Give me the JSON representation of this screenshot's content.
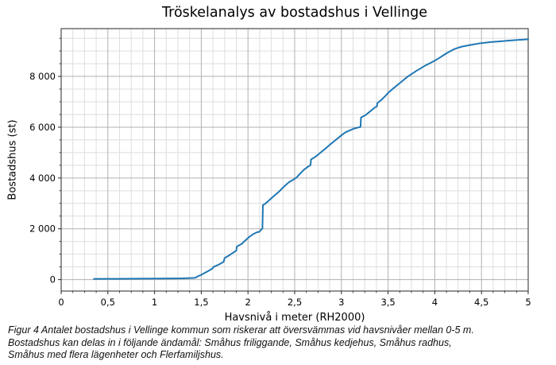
{
  "chart_data": {
    "type": "line",
    "title": "Tröskelanalys av bostadshus i Vellinge",
    "xlabel": "Havsnivå i meter (RH2000)",
    "ylabel": "Bostadshus (st)",
    "xlim": [
      0,
      5
    ],
    "ylim": [
      -450,
      9880
    ],
    "grid": true,
    "legend": "none",
    "x_ticks": {
      "values": [
        0,
        0.5,
        1,
        1.5,
        2,
        2.5,
        3,
        3.5,
        4,
        4.5,
        5
      ],
      "labels": [
        "0",
        "0,5",
        "1",
        "1,5",
        "2",
        "2,5",
        "3",
        "3,5",
        "4",
        "4,5",
        "5"
      ]
    },
    "y_ticks": {
      "values": [
        0,
        2000,
        4000,
        6000,
        8000
      ],
      "labels": [
        "0",
        "2 000",
        "4 000",
        "6 000",
        "8 000"
      ]
    },
    "x_minor_step": 0.125,
    "y_minor_step": 500,
    "colors": {
      "line": "#1f77b4",
      "grid_major": "#b0b0b0",
      "grid_minor": "#dedede",
      "spine": "#262626",
      "tick": "#262626",
      "text": "#000000"
    },
    "series": [
      {
        "name": "Bostadshus",
        "x": [
          0.35,
          0.6,
          0.9,
          1.1,
          1.3,
          1.42,
          1.45,
          1.46,
          1.49,
          1.52,
          1.57,
          1.62,
          1.63,
          1.67,
          1.71,
          1.74,
          1.75,
          1.8,
          1.84,
          1.875,
          1.88,
          1.93,
          1.98,
          2.02,
          2.06,
          2.1,
          2.12,
          2.14,
          2.155,
          2.16,
          2.19,
          2.24,
          2.29,
          2.34,
          2.39,
          2.44,
          2.48,
          2.52,
          2.56,
          2.6,
          2.64,
          2.67,
          2.675,
          2.72,
          2.78,
          2.84,
          2.9,
          2.96,
          3.0,
          3.04,
          3.08,
          3.13,
          3.18,
          3.205,
          3.21,
          3.26,
          3.31,
          3.36,
          3.38,
          3.385,
          3.43,
          3.47,
          3.5,
          3.55,
          3.6,
          3.65,
          3.7,
          3.75,
          3.8,
          3.85,
          3.9,
          3.95,
          4.0,
          4.05,
          4.1,
          4.15,
          4.2,
          4.25,
          4.3,
          4.4,
          4.5,
          4.6,
          4.7,
          4.8,
          4.9,
          5.0
        ],
        "y": [
          30,
          32,
          38,
          42,
          50,
          65,
          90,
          130,
          170,
          230,
          330,
          440,
          500,
          560,
          640,
          700,
          850,
          960,
          1060,
          1140,
          1300,
          1400,
          1570,
          1700,
          1800,
          1870,
          1880,
          1960,
          2010,
          2930,
          3000,
          3170,
          3330,
          3490,
          3680,
          3840,
          3920,
          4020,
          4180,
          4330,
          4440,
          4510,
          4730,
          4830,
          5010,
          5190,
          5380,
          5560,
          5680,
          5790,
          5860,
          5940,
          5990,
          6010,
          6380,
          6480,
          6630,
          6780,
          6820,
          6950,
          7080,
          7230,
          7350,
          7510,
          7660,
          7810,
          7960,
          8090,
          8210,
          8320,
          8430,
          8520,
          8620,
          8730,
          8850,
          8960,
          9060,
          9130,
          9180,
          9250,
          9310,
          9350,
          9380,
          9410,
          9440,
          9460
        ]
      }
    ]
  },
  "caption": [
    "Figur 4 Antalet bostadshus i Vellinge kommun som riskerar att översvämmas vid havsnivåer mellan 0-5 m.",
    "Bostadshus kan delas in i följande ändamål: Småhus friliggande, Småhus kedjehus, Småhus radhus,",
    "Småhus med flera lägenheter och Flerfamiljshus."
  ]
}
